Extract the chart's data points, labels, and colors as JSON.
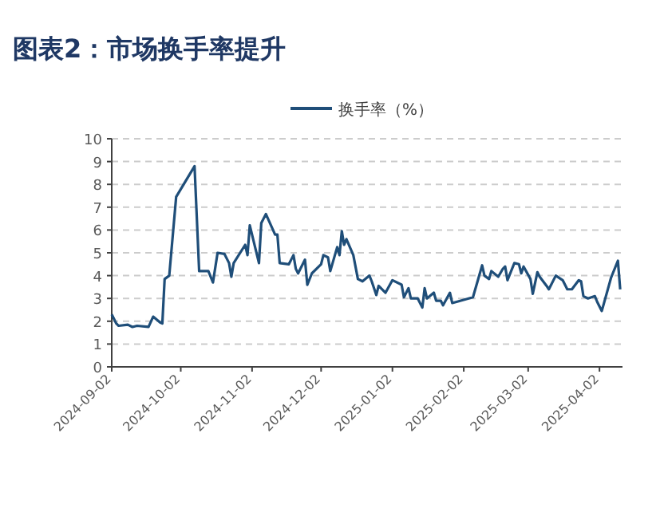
{
  "chart_data": {
    "type": "line",
    "title": "图表2：市场换手率提升",
    "x": [
      "2024-09-02",
      "2024-09-04",
      "2024-09-05",
      "2024-09-09",
      "2024-09-11",
      "2024-09-13",
      "2024-09-18",
      "2024-09-20",
      "2024-09-23",
      "2024-09-24",
      "2024-09-25",
      "2024-09-27",
      "2024-09-30",
      "2024-10-08",
      "2024-10-10",
      "2024-10-14",
      "2024-10-16",
      "2024-10-18",
      "2024-10-21",
      "2024-10-23",
      "2024-10-24",
      "2024-10-25",
      "2024-10-30",
      "2024-10-31",
      "2024-11-01",
      "2024-11-05",
      "2024-11-06",
      "2024-11-08",
      "2024-11-12",
      "2024-11-13",
      "2024-11-14",
      "2024-11-18",
      "2024-11-20",
      "2024-11-21",
      "2024-11-22",
      "2024-11-25",
      "2024-11-26",
      "2024-11-28",
      "2024-12-02",
      "2024-12-03",
      "2024-12-05",
      "2024-12-06",
      "2024-12-09",
      "2024-12-10",
      "2024-12-11",
      "2024-12-12",
      "2024-12-13",
      "2024-12-16",
      "2024-12-18",
      "2024-12-20",
      "2024-12-23",
      "2024-12-24",
      "2024-12-26",
      "2024-12-27",
      "2024-12-30",
      "2025-01-02",
      "2025-01-06",
      "2025-01-07",
      "2025-01-09",
      "2025-01-10",
      "2025-01-13",
      "2025-01-15",
      "2025-01-16",
      "2025-01-17",
      "2025-01-20",
      "2025-01-21",
      "2025-01-23",
      "2025-01-24",
      "2025-01-27",
      "2025-01-28",
      "2025-02-06",
      "2025-02-10",
      "2025-02-11",
      "2025-02-13",
      "2025-02-14",
      "2025-02-17",
      "2025-02-19",
      "2025-02-20",
      "2025-02-21",
      "2025-02-24",
      "2025-02-26",
      "2025-02-27",
      "2025-02-28",
      "2025-03-03",
      "2025-03-04",
      "2025-03-06",
      "2025-03-07",
      "2025-03-10",
      "2025-03-11",
      "2025-03-14",
      "2025-03-17",
      "2025-03-19",
      "2025-03-21",
      "2025-03-24",
      "2025-03-25",
      "2025-03-26",
      "2025-03-28",
      "2025-03-31",
      "2025-04-01",
      "2025-04-03",
      "2025-04-07",
      "2025-04-10",
      "2025-04-11"
    ],
    "series": [
      {
        "name": "换手率（%）",
        "color": "#1f4e79",
        "values": [
          2.3,
          1.9,
          1.8,
          1.85,
          1.75,
          1.8,
          1.75,
          2.2,
          1.95,
          1.9,
          3.85,
          4.0,
          7.45,
          8.8,
          4.2,
          4.2,
          3.7,
          5.0,
          4.95,
          4.55,
          3.95,
          4.55,
          5.35,
          4.9,
          6.2,
          4.55,
          6.3,
          6.7,
          5.8,
          5.8,
          4.55,
          4.5,
          4.9,
          4.3,
          4.1,
          4.7,
          3.6,
          4.1,
          4.5,
          4.9,
          4.8,
          4.2,
          5.25,
          4.9,
          5.95,
          5.35,
          5.6,
          4.9,
          3.85,
          3.75,
          4.0,
          3.75,
          3.15,
          3.55,
          3.25,
          3.8,
          3.6,
          3.05,
          3.45,
          3.0,
          3.0,
          2.6,
          3.45,
          3.0,
          3.25,
          2.9,
          2.9,
          2.7,
          3.25,
          2.8,
          3.05,
          4.45,
          4.0,
          3.85,
          4.2,
          3.95,
          4.3,
          4.4,
          3.8,
          4.55,
          4.5,
          4.1,
          4.4,
          3.85,
          3.2,
          4.15,
          3.95,
          3.55,
          3.4,
          4.0,
          3.8,
          3.4,
          3.4,
          3.8,
          3.75,
          3.1,
          3.0,
          3.1,
          2.85,
          2.45,
          3.9,
          4.65,
          3.4
        ]
      }
    ],
    "xlim": [
      "2024-09-02",
      "2025-04-12"
    ],
    "xticks": [
      "2024-09-02",
      "2024-10-02",
      "2024-11-02",
      "2024-12-02",
      "2025-01-02",
      "2025-02-02",
      "2025-03-02",
      "2025-04-02"
    ],
    "ylim": [
      0,
      10
    ],
    "yticks": [
      0,
      1,
      2,
      3,
      4,
      5,
      6,
      7,
      8,
      9,
      10
    ],
    "grid": "y",
    "legend": "top",
    "marker": "none",
    "line_style": "solid"
  }
}
